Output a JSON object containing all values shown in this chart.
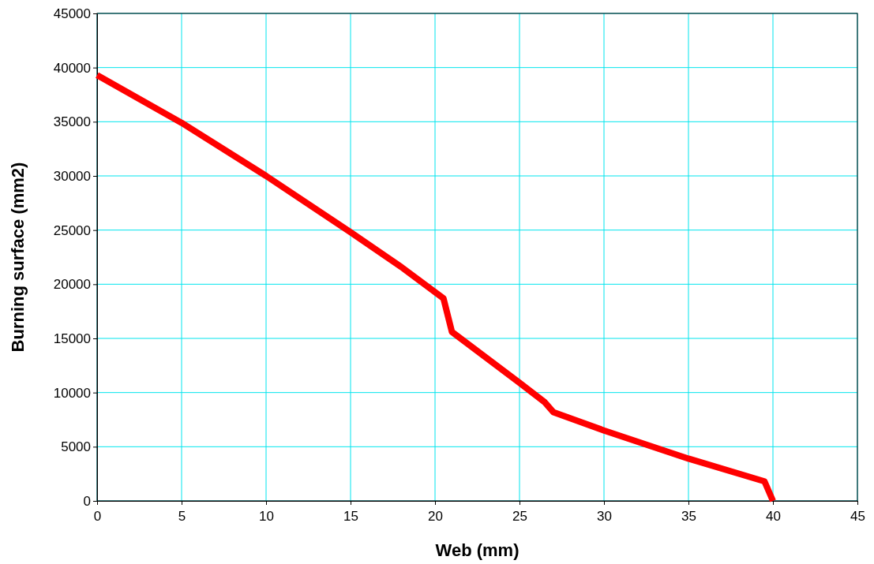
{
  "chart_data": {
    "type": "line",
    "xlabel": "Web (mm)",
    "ylabel": "Burning surface (mm2)",
    "x": [
      0,
      5,
      10,
      15,
      18,
      20.5,
      21,
      25,
      26.5,
      27,
      30,
      35,
      39.5,
      40
    ],
    "series": [
      {
        "color": "#ff0000",
        "values": [
          39300,
          34900,
          30000,
          24800,
          21600,
          18700,
          15600,
          10900,
          9100,
          8200,
          6500,
          3900,
          1800,
          0
        ]
      }
    ],
    "xlim": [
      0,
      45
    ],
    "xticks": [
      0,
      5,
      10,
      15,
      20,
      25,
      30,
      35,
      40,
      45
    ],
    "ylim": [
      0,
      45000
    ],
    "yticks": [
      0,
      5000,
      10000,
      15000,
      20000,
      25000,
      30000,
      35000,
      40000,
      45000
    ],
    "grid": true,
    "marker": "none",
    "line_style": "solid"
  }
}
